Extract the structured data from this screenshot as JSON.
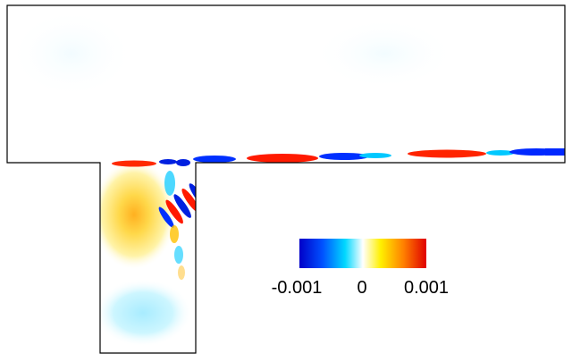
{
  "colorbar": {
    "min_label": "-0.001",
    "mid_label": "0",
    "max_label": "0.001",
    "colors": [
      "#0000c8",
      "#0050ff",
      "#00d8ff",
      "#ffffff",
      "#fff000",
      "#ff8000",
      "#e00000"
    ]
  },
  "field": {
    "blue": "#0018e6",
    "red": "#ff1a00",
    "cyan": "#bff1ff",
    "yellow": "#ffe57a",
    "orange": "#ffa830"
  }
}
